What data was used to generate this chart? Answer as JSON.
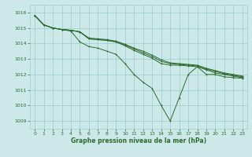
{
  "xlabel": "Graphe pression niveau de la mer (hPa)",
  "xlim": [
    -0.5,
    23.5
  ],
  "ylim": [
    1008.5,
    1016.5
  ],
  "yticks": [
    1009,
    1010,
    1011,
    1012,
    1013,
    1014,
    1015,
    1016
  ],
  "xticks": [
    0,
    1,
    2,
    3,
    4,
    5,
    6,
    7,
    8,
    9,
    10,
    11,
    12,
    13,
    14,
    15,
    16,
    17,
    18,
    19,
    20,
    21,
    22,
    23
  ],
  "bg_color": "#cce8e8",
  "grid_color": "#99cccc",
  "line_color": "#2d6b2d",
  "spike_line": [
    1015.8,
    1015.2,
    1015.0,
    1014.9,
    1014.8,
    1014.1,
    1013.8,
    1013.7,
    1013.5,
    1013.3,
    1012.7,
    1012.0,
    1011.5,
    1011.1,
    1010.0,
    1009.0,
    1010.5,
    1012.0,
    1012.5,
    1012.0,
    1012.0,
    1011.85,
    1011.8,
    1011.75
  ],
  "smooth_lines": [
    [
      1015.8,
      1015.2,
      1015.0,
      1014.9,
      1014.85,
      1014.75,
      1014.3,
      1014.25,
      1014.2,
      1014.1,
      1013.85,
      1013.55,
      1013.3,
      1013.05,
      1012.7,
      1012.6,
      1012.6,
      1012.55,
      1012.5,
      1012.3,
      1012.1,
      1012.0,
      1011.9,
      1011.8
    ],
    [
      1015.8,
      1015.2,
      1015.0,
      1014.9,
      1014.85,
      1014.75,
      1014.3,
      1014.25,
      1014.2,
      1014.1,
      1013.9,
      1013.65,
      1013.4,
      1013.15,
      1012.85,
      1012.7,
      1012.65,
      1012.6,
      1012.55,
      1012.35,
      1012.2,
      1012.05,
      1011.95,
      1011.85
    ],
    [
      1015.8,
      1015.2,
      1015.0,
      1014.9,
      1014.85,
      1014.75,
      1014.35,
      1014.3,
      1014.25,
      1014.15,
      1013.95,
      1013.7,
      1013.5,
      1013.25,
      1012.95,
      1012.75,
      1012.7,
      1012.65,
      1012.6,
      1012.4,
      1012.25,
      1012.1,
      1012.0,
      1011.9
    ]
  ]
}
